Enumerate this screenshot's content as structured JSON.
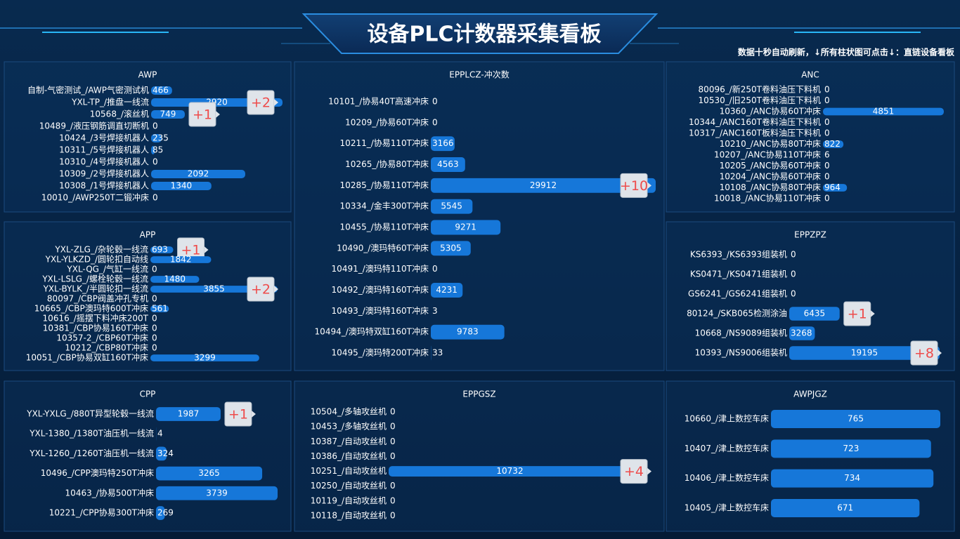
{
  "header": {
    "title": "设备PLC计数器采集看板",
    "note": "数据十秒自动刷新，↓所有柱状图可点击↓：直链设备看板"
  },
  "chart_data": [
    {
      "type": "bar",
      "orientation": "horizontal",
      "title": "AWP",
      "color": "#1677d9",
      "categories": [
        "自制-气密测试_/AWP气密测试机",
        "YXL-TP_/推盘一线流",
        "10568_/滚丝机",
        "10489_/液压钢筋调直切断机",
        "10424_/3号焊接机器人",
        "10311_/5号焊接机器人",
        "10310_/4号焊接机器人",
        "10309_/2号焊接机器人",
        "10308_/1号焊接机器人",
        "10010_/AWP250T二锻冲床"
      ],
      "values": [
        466,
        2920,
        749,
        0,
        235,
        85,
        0,
        2092,
        1340,
        0
      ],
      "badges": [
        null,
        "+2",
        "+1",
        null,
        null,
        null,
        null,
        null,
        null,
        null
      ]
    },
    {
      "type": "bar",
      "orientation": "horizontal",
      "title": "EPPLCZ-冲次数",
      "color": "#1677d9",
      "categories": [
        "10101_/协易40T高速冲床",
        "10209_/协易60T冲床",
        "10211_/协易110T冲床",
        "10265_/协易80T冲床",
        "10285_/协易110T冲床",
        "10334_/金丰300T冲床",
        "10455_/协易110T冲床",
        "10490_/澳玛特60T冲床",
        "10491_/澳玛特110T冲床",
        "10492_/澳玛特160T冲床",
        "10493_/澳玛特160T冲床",
        "10494_/澳玛特双缸160T冲床",
        "10495_/澳玛特200T冲床"
      ],
      "values": [
        0,
        0,
        3166,
        4563,
        29912,
        5545,
        9271,
        5305,
        0,
        4231,
        3,
        9783,
        33
      ],
      "badges": [
        null,
        null,
        null,
        null,
        "+10",
        null,
        null,
        null,
        null,
        null,
        null,
        null,
        null
      ]
    },
    {
      "type": "bar",
      "orientation": "horizontal",
      "title": "ANC",
      "color": "#1677d9",
      "categories": [
        "80096_/新250T卷料油压下料机",
        "10530_/旧250T卷料油压下料机",
        "10360_/ANC协易60T冲床",
        "10344_/ANC160T卷料油压下料机",
        "10317_/ANC160T板料油压下料机",
        "10210_/ANC协易80T冲床",
        "10207_/ANC协易110T冲床",
        "10205_/ANC协易60T冲床",
        "10204_/ANC协易60T冲床",
        "10108_/ANC协易80T冲床",
        "10018_/ANC协易110T冲床"
      ],
      "values": [
        0,
        0,
        4851,
        0,
        0,
        822,
        6,
        0,
        0,
        964,
        0
      ],
      "badges": [
        null,
        null,
        null,
        null,
        null,
        null,
        null,
        null,
        null,
        null,
        null
      ]
    },
    {
      "type": "bar",
      "orientation": "horizontal",
      "title": "APP",
      "color": "#1677d9",
      "categories": [
        "YXL-ZLG_/杂轮毂一线流",
        "YXL-YLKZD_/圆轮扣自动线",
        "YXL-QG_/气缸一线流",
        "YXL-LSLG_/螺栓轮毂一线流",
        "YXL-BYLK_/半圆轮扣一线流",
        "80097_/CBP阀盖冲孔专机",
        "10665_/CBP澳玛特600T冲床",
        "10616_/摇摆下料冲床200T",
        "10381_/CBP协易160T冲床",
        "10357-2_/CBP60T冲床",
        "10212_/CBP80T冲床",
        "10051_/CBP协易双缸160T冲床"
      ],
      "values": [
        693,
        1842,
        0,
        1480,
        3855,
        0,
        561,
        0,
        0,
        0,
        0,
        3299
      ],
      "badges": [
        "+1",
        null,
        null,
        null,
        "+2",
        null,
        null,
        null,
        null,
        null,
        null,
        null
      ]
    },
    {
      "type": "bar",
      "orientation": "horizontal",
      "title": "EPPZPZ",
      "color": "#1677d9",
      "categories": [
        "KS6393_/KS6393组装机",
        "KS0471_/KS0471组装机",
        "GS6241_/GS6241组装机",
        "80124_/SKB065检测涂油",
        "10668_/NS9089组装机",
        "10393_/NS9006组装机"
      ],
      "values": [
        0,
        0,
        0,
        6435,
        3268,
        19195
      ],
      "badges": [
        null,
        null,
        null,
        "+1",
        null,
        "+8"
      ]
    },
    {
      "type": "bar",
      "orientation": "horizontal",
      "title": "CPP",
      "color": "#1677d9",
      "categories": [
        "YXL-YXLG_/880T异型轮毂一线流",
        "YXL-1380_/1380T油压机一线流",
        "YXL-1260_/1260T油压机一线流",
        "10496_/CPP澳玛特250T冲床",
        "10463_/协易500T冲床",
        "10221_/CPP协易300T冲床"
      ],
      "values": [
        1987,
        4,
        324,
        3265,
        3739,
        269
      ],
      "badges": [
        "+1",
        null,
        null,
        null,
        null,
        null
      ]
    },
    {
      "type": "bar",
      "orientation": "horizontal",
      "title": "EPPGSZ",
      "color": "#1677d9",
      "categories": [
        "10504_/多轴攻丝机",
        "10453_/多轴攻丝机",
        "10387_/自动攻丝机",
        "10386_/自动攻丝机",
        "10251_/自动攻丝机",
        "10250_/自动攻丝机",
        "10119_/自动攻丝机",
        "10118_/自动攻丝机"
      ],
      "values": [
        0,
        0,
        0,
        0,
        10732,
        0,
        0,
        0
      ],
      "badges": [
        null,
        null,
        null,
        null,
        "+4",
        null,
        null,
        null
      ]
    },
    {
      "type": "bar",
      "orientation": "horizontal",
      "title": "AWPJGZ",
      "color": "#1677d9",
      "categories": [
        "10660_/津上数控车床",
        "10407_/津上数控车床",
        "10406_/津上数控车床",
        "10405_/津上数控车床"
      ],
      "values": [
        765,
        723,
        734,
        671
      ],
      "badges": [
        null,
        null,
        null,
        null
      ]
    }
  ]
}
